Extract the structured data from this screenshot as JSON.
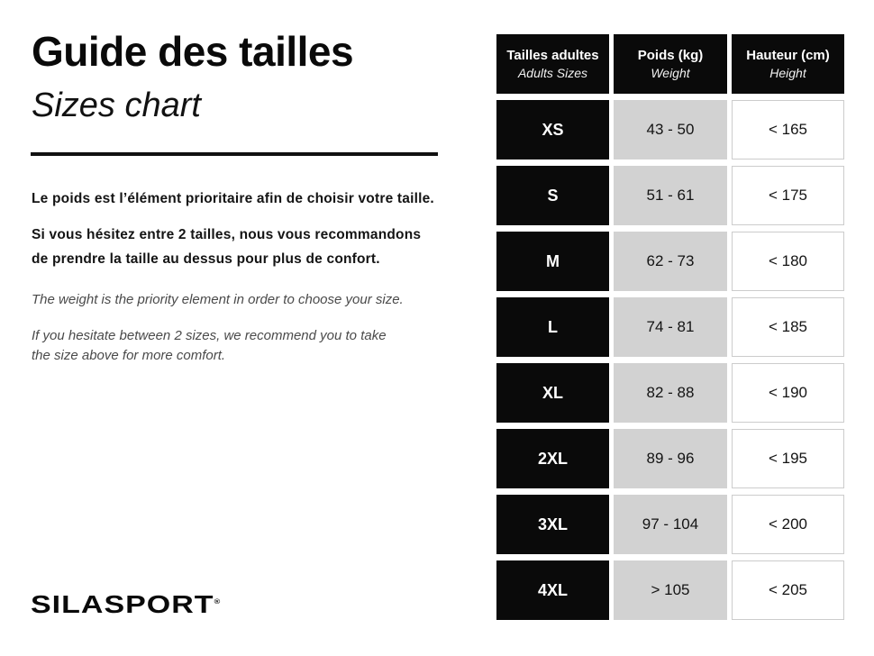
{
  "header": {
    "title_fr": "Guide des tailles",
    "title_en": "Sizes chart"
  },
  "intro": {
    "fr_paragraph_1": [
      "Le poids est l’élément prioritaire afin de choisir votre taille."
    ],
    "fr_paragraph_2": [
      "Si vous hésitez entre 2 tailles, nous vous recommandons",
      "de prendre la taille au dessus pour plus de confort."
    ],
    "en_paragraph_1": [
      "The weight is the priority element in order to choose your size."
    ],
    "en_paragraph_2": [
      "If you hesitate between 2 sizes, we recommend you to take",
      "the size above for more comfort."
    ]
  },
  "logo": {
    "brand": "SILASPORT",
    "registered_mark": "®"
  },
  "table": {
    "columns": [
      {
        "title": "Tailles adultes",
        "subtitle": "Adults Sizes"
      },
      {
        "title": "Poids (kg)",
        "subtitle": "Weight"
      },
      {
        "title": "Hauteur (cm)",
        "subtitle": "Height"
      }
    ],
    "rows": [
      {
        "size": "XS",
        "weight": "43 - 50",
        "height": "< 165"
      },
      {
        "size": "S",
        "weight": "51 - 61",
        "height": "< 175"
      },
      {
        "size": "M",
        "weight": "62 - 73",
        "height": "< 180"
      },
      {
        "size": "L",
        "weight": "74 - 81",
        "height": "< 185"
      },
      {
        "size": "XL",
        "weight": "82 - 88",
        "height": "< 190"
      },
      {
        "size": "2XL",
        "weight": "89 - 96",
        "height": "< 195"
      },
      {
        "size": "3XL",
        "weight": "97 - 104",
        "height": "< 200"
      },
      {
        "size": "4XL",
        "weight": "> 105",
        "height": "< 205"
      }
    ]
  },
  "colors": {
    "cell_black": "#0a0a0a",
    "cell_gray": "#d2d2d2",
    "cell_white_border": "#cccccc",
    "text_primary": "#141414",
    "text_italic_secondary": "#4a4a4a"
  }
}
